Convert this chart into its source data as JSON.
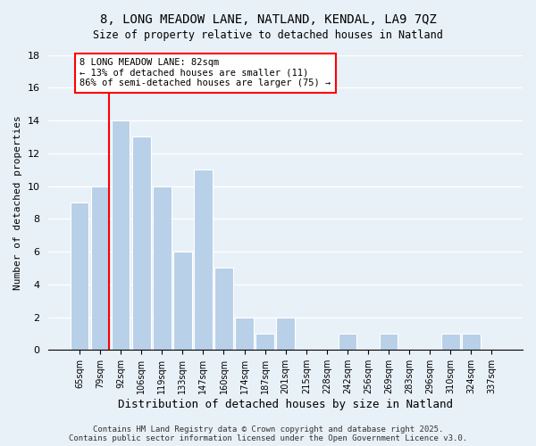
{
  "title": "8, LONG MEADOW LANE, NATLAND, KENDAL, LA9 7QZ",
  "subtitle": "Size of property relative to detached houses in Natland",
  "xlabel": "Distribution of detached houses by size in Natland",
  "ylabel": "Number of detached properties",
  "bar_labels": [
    "65sqm",
    "79sqm",
    "92sqm",
    "106sqm",
    "119sqm",
    "133sqm",
    "147sqm",
    "160sqm",
    "174sqm",
    "187sqm",
    "201sqm",
    "215sqm",
    "228sqm",
    "242sqm",
    "256sqm",
    "269sqm",
    "283sqm",
    "296sqm",
    "310sqm",
    "324sqm",
    "337sqm"
  ],
  "bar_values": [
    9,
    10,
    14,
    13,
    10,
    6,
    11,
    5,
    2,
    1,
    2,
    0,
    0,
    1,
    0,
    1,
    0,
    0,
    1,
    1,
    0
  ],
  "bar_color": "#b8d0e8",
  "reference_line_color": "red",
  "reference_line_bar_index": 1,
  "annotation_text": "8 LONG MEADOW LANE: 82sqm\n← 13% of detached houses are smaller (11)\n86% of semi-detached houses are larger (75) →",
  "annotation_box_color": "white",
  "annotation_box_edge_color": "red",
  "ylim": [
    0,
    18
  ],
  "yticks": [
    0,
    2,
    4,
    6,
    8,
    10,
    12,
    14,
    16,
    18
  ],
  "background_color": "#e8f0f8",
  "grid_color": "white",
  "footer_line1": "Contains HM Land Registry data © Crown copyright and database right 2025.",
  "footer_line2": "Contains public sector information licensed under the Open Government Licence v3.0."
}
